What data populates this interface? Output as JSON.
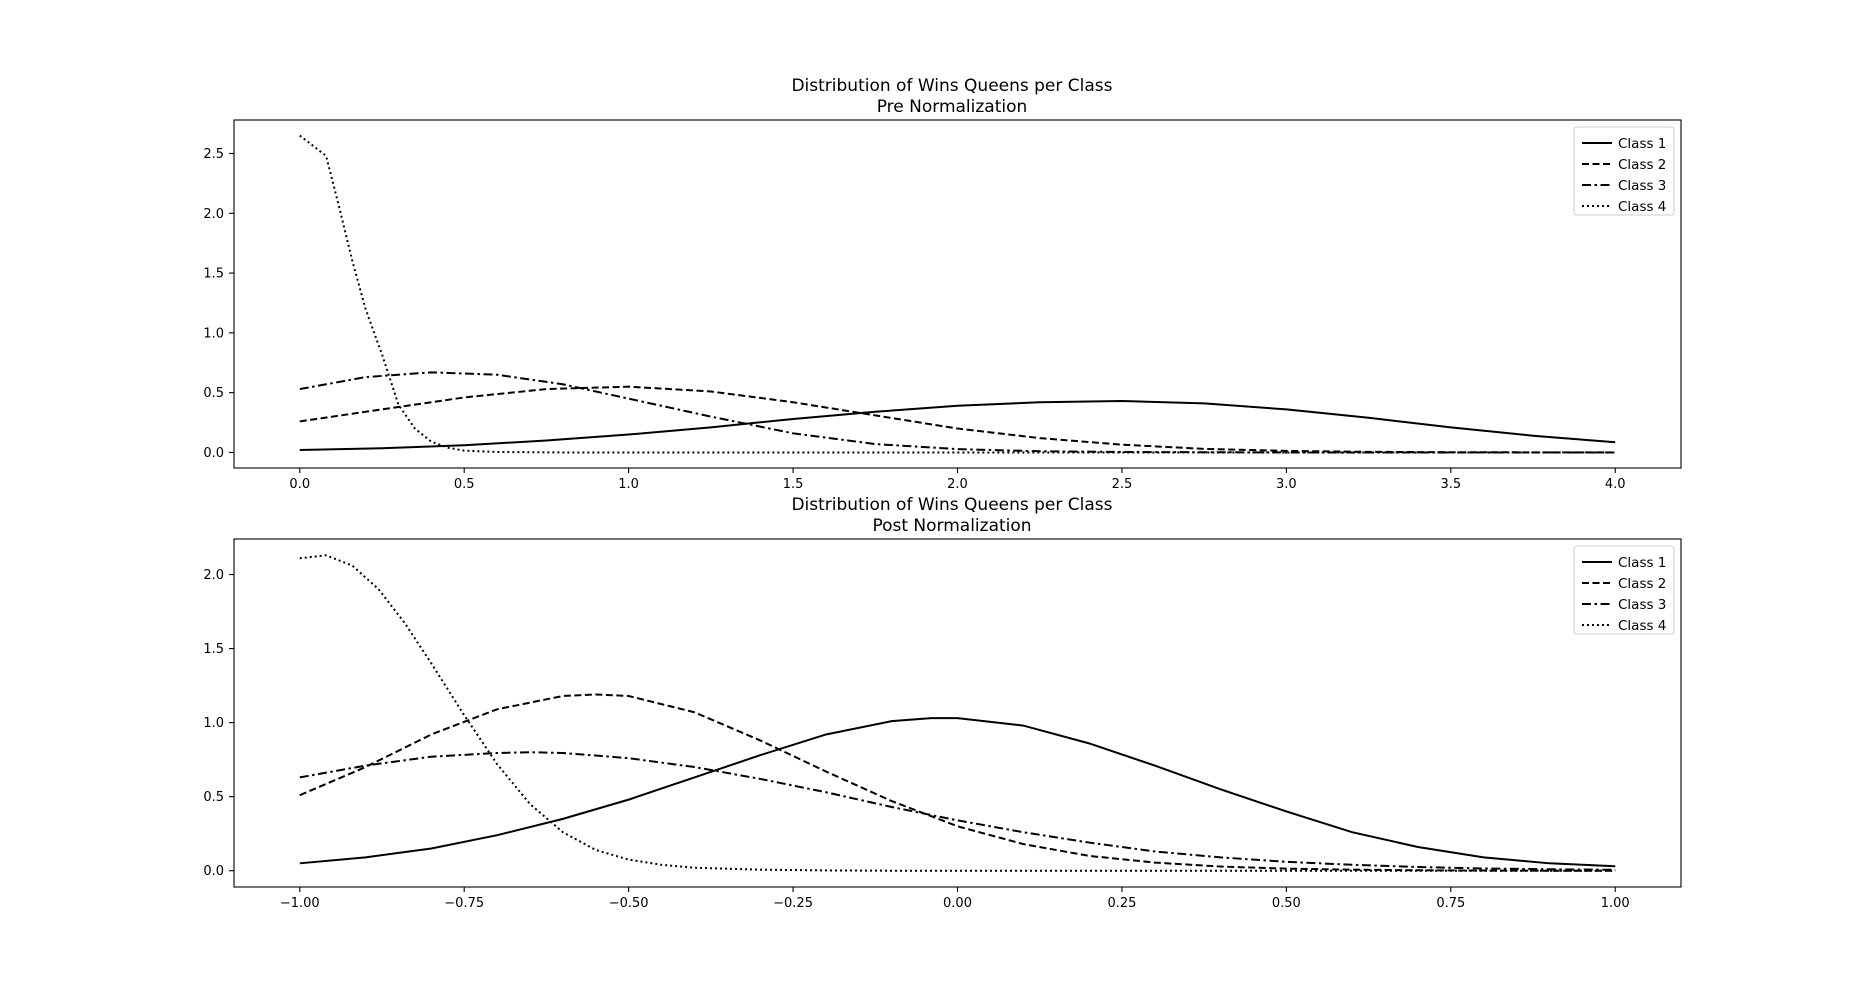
{
  "chart_data": [
    {
      "type": "line",
      "title": "Distribution of Wins Queens per Class",
      "subtitle": "Pre Normalization",
      "xlabel": "",
      "ylabel": "",
      "xlim": [
        -0.2,
        4.2
      ],
      "ylim": [
        -0.13,
        2.78
      ],
      "xticks": [
        0.0,
        0.5,
        1.0,
        1.5,
        2.0,
        2.5,
        3.0,
        3.5,
        4.0
      ],
      "xtick_labels": [
        "0.0",
        "0.5",
        "1.0",
        "1.5",
        "2.0",
        "2.5",
        "3.0",
        "3.5",
        "4.0"
      ],
      "yticks": [
        0.0,
        0.5,
        1.0,
        1.5,
        2.0,
        2.5
      ],
      "ytick_labels": [
        "0.0",
        "0.5",
        "1.0",
        "1.5",
        "2.0",
        "2.5"
      ],
      "grid": false,
      "legend_position": "top-right",
      "series": [
        {
          "name": "Class 1",
          "style": "solid",
          "x": [
            0.0,
            0.25,
            0.5,
            0.75,
            1.0,
            1.25,
            1.5,
            1.75,
            2.0,
            2.25,
            2.5,
            2.75,
            3.0,
            3.25,
            3.5,
            3.75,
            4.0
          ],
          "y": [
            0.02,
            0.035,
            0.06,
            0.1,
            0.15,
            0.21,
            0.28,
            0.34,
            0.39,
            0.42,
            0.43,
            0.41,
            0.36,
            0.29,
            0.21,
            0.14,
            0.085
          ]
        },
        {
          "name": "Class 2",
          "style": "dashed",
          "x": [
            0.0,
            0.25,
            0.5,
            0.75,
            1.0,
            1.25,
            1.5,
            1.75,
            2.0,
            2.25,
            2.5,
            2.75,
            3.0,
            3.25,
            3.5,
            3.75,
            4.0
          ],
          "y": [
            0.26,
            0.36,
            0.46,
            0.53,
            0.55,
            0.51,
            0.42,
            0.31,
            0.2,
            0.12,
            0.065,
            0.03,
            0.013,
            0.005,
            0.002,
            0.001,
            0.0
          ]
        },
        {
          "name": "Class 3",
          "style": "dashdot",
          "x": [
            0.0,
            0.2,
            0.4,
            0.6,
            0.8,
            1.0,
            1.25,
            1.5,
            1.75,
            2.0,
            2.25,
            2.5,
            3.0,
            3.5,
            4.0
          ],
          "y": [
            0.53,
            0.63,
            0.67,
            0.65,
            0.57,
            0.45,
            0.3,
            0.16,
            0.07,
            0.028,
            0.01,
            0.004,
            0.0,
            0.0,
            0.0
          ]
        },
        {
          "name": "Class 4",
          "style": "dotted",
          "x": [
            0.0,
            0.08,
            0.12,
            0.16,
            0.2,
            0.25,
            0.3,
            0.35,
            0.4,
            0.45,
            0.5,
            0.6,
            0.8,
            1.0,
            1.5,
            2.0,
            3.0,
            4.0
          ],
          "y": [
            2.65,
            2.48,
            2.05,
            1.6,
            1.2,
            0.82,
            0.4,
            0.2,
            0.09,
            0.04,
            0.015,
            0.004,
            0.0,
            0.0,
            0.0,
            0.0,
            0.0,
            0.0
          ]
        }
      ]
    },
    {
      "type": "line",
      "title": "Distribution of Wins Queens per Class",
      "subtitle": "Post Normalization",
      "xlabel": "",
      "ylabel": "",
      "xlim": [
        -1.1,
        1.1
      ],
      "ylim": [
        -0.11,
        2.24
      ],
      "xticks": [
        -1.0,
        -0.75,
        -0.5,
        -0.25,
        0.0,
        0.25,
        0.5,
        0.75,
        1.0
      ],
      "xtick_labels": [
        "−1.00",
        "−0.75",
        "−0.50",
        "−0.25",
        "0.00",
        "0.25",
        "0.50",
        "0.75",
        "1.00"
      ],
      "yticks": [
        0.0,
        0.5,
        1.0,
        1.5,
        2.0
      ],
      "ytick_labels": [
        "0.0",
        "0.5",
        "1.0",
        "1.5",
        "2.0"
      ],
      "grid": false,
      "legend_position": "top-right",
      "series": [
        {
          "name": "Class 1",
          "style": "solid",
          "x": [
            -1.0,
            -0.9,
            -0.8,
            -0.7,
            -0.6,
            -0.5,
            -0.4,
            -0.3,
            -0.2,
            -0.1,
            -0.04,
            0.0,
            0.1,
            0.2,
            0.3,
            0.4,
            0.5,
            0.6,
            0.7,
            0.8,
            0.9,
            1.0
          ],
          "y": [
            0.05,
            0.09,
            0.15,
            0.24,
            0.35,
            0.48,
            0.63,
            0.78,
            0.92,
            1.01,
            1.03,
            1.03,
            0.98,
            0.86,
            0.71,
            0.55,
            0.4,
            0.26,
            0.16,
            0.09,
            0.05,
            0.03
          ]
        },
        {
          "name": "Class 2",
          "style": "dashed",
          "x": [
            -1.0,
            -0.9,
            -0.8,
            -0.7,
            -0.6,
            -0.55,
            -0.5,
            -0.4,
            -0.3,
            -0.2,
            -0.1,
            0.0,
            0.1,
            0.2,
            0.3,
            0.4,
            0.5,
            0.6,
            0.7,
            0.8,
            0.9,
            1.0
          ],
          "y": [
            0.51,
            0.7,
            0.92,
            1.09,
            1.18,
            1.19,
            1.18,
            1.07,
            0.88,
            0.67,
            0.47,
            0.3,
            0.18,
            0.1,
            0.055,
            0.028,
            0.014,
            0.007,
            0.003,
            0.001,
            0.0,
            0.0
          ]
        },
        {
          "name": "Class 3",
          "style": "dashdot",
          "x": [
            -1.0,
            -0.9,
            -0.8,
            -0.7,
            -0.65,
            -0.6,
            -0.5,
            -0.4,
            -0.3,
            -0.2,
            -0.1,
            0.0,
            0.1,
            0.2,
            0.3,
            0.4,
            0.5,
            0.6,
            0.7,
            0.8,
            0.9,
            1.0
          ],
          "y": [
            0.63,
            0.71,
            0.77,
            0.795,
            0.8,
            0.795,
            0.76,
            0.7,
            0.62,
            0.53,
            0.43,
            0.34,
            0.26,
            0.19,
            0.13,
            0.09,
            0.06,
            0.04,
            0.025,
            0.015,
            0.01,
            0.006
          ]
        },
        {
          "name": "Class 4",
          "style": "dotted",
          "x": [
            -1.0,
            -0.96,
            -0.92,
            -0.88,
            -0.84,
            -0.8,
            -0.75,
            -0.7,
            -0.65,
            -0.6,
            -0.55,
            -0.5,
            -0.45,
            -0.4,
            -0.3,
            -0.2,
            -0.1,
            0.0,
            0.25,
            0.5,
            0.75,
            1.0
          ],
          "y": [
            2.11,
            2.13,
            2.06,
            1.9,
            1.67,
            1.4,
            1.05,
            0.72,
            0.45,
            0.26,
            0.14,
            0.075,
            0.04,
            0.02,
            0.007,
            0.002,
            0.0,
            0.0,
            0.0,
            0.0,
            0.0,
            0.0
          ]
        }
      ]
    }
  ]
}
